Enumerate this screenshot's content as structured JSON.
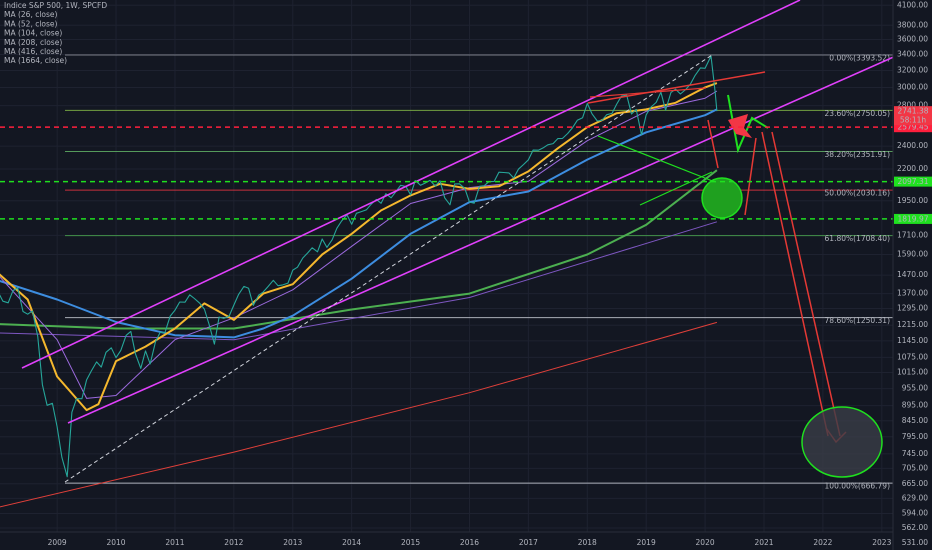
{
  "chart_data": {
    "type": "line",
    "log_scale": true,
    "grid": true,
    "background": "#131722",
    "grid_color": "#1e2230",
    "xlim": [
      2008.03,
      2023.19
    ],
    "xticks": [
      2009,
      2010,
      2011,
      2012,
      2013,
      2014,
      2015,
      2016,
      2017,
      2018,
      2019,
      2020,
      2021,
      2022,
      2023
    ],
    "ylim": [
      517,
      4183
    ],
    "yticks": [
      {
        "value": 4100,
        "label": "4100.00"
      },
      {
        "value": 3800,
        "label": "3800.00"
      },
      {
        "value": 3600,
        "label": "3600.00"
      },
      {
        "value": 3400,
        "label": "3400.00"
      },
      {
        "value": 3200,
        "label": "3200.00"
      },
      {
        "value": 3000,
        "label": "3000.00"
      },
      {
        "value": 2800,
        "label": "2800.00"
      },
      {
        "value": 2400,
        "label": "2400.00"
      },
      {
        "value": 2200,
        "label": "2200.00"
      },
      {
        "value": 1950,
        "label": "1950.00"
      },
      {
        "value": 1710,
        "label": "1710.00"
      },
      {
        "value": 1590,
        "label": "1590.00"
      },
      {
        "value": 1470,
        "label": "1470.00"
      },
      {
        "value": 1370,
        "label": "1370.00"
      },
      {
        "value": 1295,
        "label": "1295.00"
      },
      {
        "value": 1215,
        "label": "1215.00"
      },
      {
        "value": 1145,
        "label": "1145.00"
      },
      {
        "value": 1075,
        "label": "1075.00"
      },
      {
        "value": 1015,
        "label": "1015.00"
      },
      {
        "value": 955,
        "label": "955.00"
      },
      {
        "value": 895,
        "label": "895.00"
      },
      {
        "value": 845,
        "label": "845.00"
      },
      {
        "value": 795,
        "label": "795.00"
      },
      {
        "value": 745,
        "label": "745.00"
      },
      {
        "value": 705,
        "label": "705.00"
      },
      {
        "value": 665,
        "label": "665.00"
      },
      {
        "value": 629,
        "label": "629.00"
      },
      {
        "value": 594,
        "label": "594.00"
      },
      {
        "value": 562,
        "label": "562.00"
      },
      {
        "value": 531,
        "label": "531.00"
      }
    ],
    "series": [
      {
        "name": "Indice S&P 500, 1W, SPCFD",
        "color": "#26a69a",
        "width": 1.1,
        "x": [
          2008.0,
          2008.08,
          2008.17,
          2008.25,
          2008.33,
          2008.42,
          2008.5,
          2008.58,
          2008.67,
          2008.75,
          2008.83,
          2008.92,
          2009.0,
          2009.08,
          2009.17,
          2009.25,
          2009.33,
          2009.42,
          2009.5,
          2009.58,
          2009.67,
          2009.75,
          2009.83,
          2009.92,
          2010.0,
          2010.08,
          2010.17,
          2010.25,
          2010.33,
          2010.42,
          2010.5,
          2010.58,
          2010.67,
          2010.75,
          2010.83,
          2010.92,
          2011.0,
          2011.08,
          2011.17,
          2011.25,
          2011.33,
          2011.42,
          2011.5,
          2011.58,
          2011.67,
          2011.75,
          2011.83,
          2011.92,
          2012.0,
          2012.08,
          2012.17,
          2012.25,
          2012.33,
          2012.42,
          2012.5,
          2012.58,
          2012.67,
          2012.75,
          2012.83,
          2012.92,
          2013.0,
          2013.08,
          2013.17,
          2013.25,
          2013.33,
          2013.42,
          2013.5,
          2013.58,
          2013.67,
          2013.75,
          2013.83,
          2013.92,
          2014.0,
          2014.08,
          2014.17,
          2014.25,
          2014.33,
          2014.42,
          2014.5,
          2014.58,
          2014.67,
          2014.75,
          2014.83,
          2014.92,
          2015.0,
          2015.08,
          2015.17,
          2015.25,
          2015.33,
          2015.42,
          2015.5,
          2015.58,
          2015.67,
          2015.75,
          2015.83,
          2015.92,
          2016.0,
          2016.08,
          2016.17,
          2016.25,
          2016.33,
          2016.42,
          2016.5,
          2016.58,
          2016.67,
          2016.75,
          2016.83,
          2016.92,
          2017.0,
          2017.08,
          2017.17,
          2017.25,
          2017.33,
          2017.42,
          2017.5,
          2017.58,
          2017.67,
          2017.75,
          2017.83,
          2017.92,
          2018.0,
          2018.08,
          2018.17,
          2018.25,
          2018.33,
          2018.42,
          2018.5,
          2018.58,
          2018.67,
          2018.75,
          2018.83,
          2018.92,
          2019.0,
          2019.08,
          2019.17,
          2019.25,
          2019.33,
          2019.42,
          2019.5,
          2019.58,
          2019.67,
          2019.75,
          2019.83,
          2019.92,
          2020.0,
          2020.1,
          2020.17,
          2020.2
        ],
        "values": [
          1378,
          1331,
          1323,
          1386,
          1400,
          1280,
          1267,
          1283,
          1166,
          969,
          896,
          903,
          826,
          735,
          683,
          873,
          919,
          919,
          987,
          1021,
          1057,
          1036,
          1096,
          1115,
          1074,
          1104,
          1169,
          1187,
          1089,
          1031,
          1102,
          1049,
          1141,
          1183,
          1181,
          1258,
          1286,
          1327,
          1326,
          1364,
          1345,
          1321,
          1292,
          1219,
          1131,
          1253,
          1247,
          1258,
          1312,
          1366,
          1408,
          1398,
          1310,
          1362,
          1379,
          1407,
          1441,
          1412,
          1416,
          1426,
          1498,
          1515,
          1569,
          1598,
          1631,
          1606,
          1686,
          1633,
          1682,
          1757,
          1806,
          1848,
          1783,
          1859,
          1872,
          1884,
          1924,
          1960,
          1931,
          2003,
          1972,
          2018,
          2068,
          2059,
          1995,
          2105,
          2068,
          2086,
          2107,
          2063,
          2104,
          1972,
          1920,
          2079,
          2080,
          2044,
          1940,
          1932,
          2060,
          2065,
          2097,
          2099,
          2174,
          2171,
          2168,
          2126,
          2199,
          2239,
          2279,
          2364,
          2363,
          2384,
          2412,
          2423,
          2470,
          2472,
          2519,
          2575,
          2648,
          2674,
          2824,
          2714,
          2641,
          2648,
          2705,
          2718,
          2816,
          2902,
          2914,
          2712,
          2760,
          2507,
          2704,
          2784,
          2834,
          2946,
          2752,
          2942,
          2980,
          2926,
          2977,
          3038,
          3141,
          3231,
          3226,
          3380,
          2954,
          2741
        ]
      },
      {
        "name": "MA (26, close)",
        "color": "#f5b82e",
        "width": 2,
        "x": [
          2008.0,
          2008.5,
          2009.0,
          2009.5,
          2009.7,
          2010.0,
          2010.5,
          2011.0,
          2011.5,
          2012.0,
          2012.5,
          2013.0,
          2013.5,
          2014.0,
          2014.5,
          2015.0,
          2015.5,
          2016.0,
          2016.5,
          2017.0,
          2017.5,
          2018.0,
          2018.5,
          2019.0,
          2019.5,
          2020.0,
          2020.2
        ],
        "values": [
          1480,
          1340,
          1000,
          880,
          900,
          1060,
          1120,
          1200,
          1320,
          1240,
          1370,
          1420,
          1590,
          1720,
          1880,
          1990,
          2080,
          2040,
          2060,
          2180,
          2380,
          2580,
          2720,
          2760,
          2830,
          3000,
          3050
        ]
      },
      {
        "name": "MA (52, close)",
        "color": "#9c6ade",
        "width": 1,
        "x": [
          2008.0,
          2009.0,
          2009.5,
          2010.0,
          2011.0,
          2012.0,
          2013.0,
          2014.0,
          2015.0,
          2016.0,
          2017.0,
          2018.0,
          2019.0,
          2020.0,
          2020.2
        ],
        "values": [
          1470,
          1150,
          920,
          930,
          1150,
          1250,
          1390,
          1640,
          1930,
          2050,
          2100,
          2450,
          2740,
          2880,
          2960
        ]
      },
      {
        "name": "MA (104, close)",
        "color": "#3d8de0",
        "width": 2,
        "x": [
          2008.0,
          2009.0,
          2010.0,
          2011.0,
          2012.0,
          2012.5,
          2013.0,
          2014.0,
          2015.0,
          2016.0,
          2017.0,
          2018.0,
          2019.0,
          2020.0,
          2020.2
        ],
        "values": [
          1440,
          1340,
          1230,
          1170,
          1160,
          1200,
          1260,
          1450,
          1720,
          1940,
          2020,
          2280,
          2530,
          2700,
          2760
        ]
      },
      {
        "name": "MA (208, close)",
        "color": "#4caf50",
        "width": 2,
        "x": [
          2008.0,
          2010.0,
          2012.0,
          2014.0,
          2016.0,
          2018.0,
          2019.0,
          2020.2
        ],
        "values": [
          1220,
          1200,
          1200,
          1290,
          1370,
          1590,
          1780,
          2190
        ]
      },
      {
        "name": "MA (416, close)",
        "color": "#7e57c2",
        "width": 1,
        "x": [
          2008.0,
          2012.0,
          2016.0,
          2020.2
        ],
        "values": [
          1180,
          1150,
          1350,
          1800
        ]
      },
      {
        "name": "MA (1664, close)",
        "color": "#e0403a",
        "width": 1,
        "x": [
          2008.0,
          2012.0,
          2016.0,
          2020.2
        ],
        "values": [
          608,
          750,
          940,
          1228
        ]
      }
    ],
    "fib_levels": [
      {
        "value": 3393.52,
        "label": "0.00%(3393.52)",
        "color": "#9598a1"
      },
      {
        "value": 2750.05,
        "label": "23.60%(2750.05)",
        "color": "#8bc34a"
      },
      {
        "value": 2351.91,
        "label": "38.20%(2351.91)",
        "color": "#66bb6a"
      },
      {
        "value": 2030.16,
        "label": "50.00%(2030.16)",
        "color": "#f23645"
      },
      {
        "value": 1708.4,
        "label": "61.80%(1708.40)",
        "color": "#4caf50"
      },
      {
        "value": 1250.31,
        "label": "78.60%(1250.31)",
        "color": "#d1d4dc"
      },
      {
        "value": 666.79,
        "label": "100.00%(666.79)",
        "color": "#d1d4dc"
      }
    ],
    "levels": [
      {
        "value": 2579.45,
        "color": "#ff1f3d"
      },
      {
        "value": 2097.31,
        "color": "#1fe01f"
      },
      {
        "value": 1819.97,
        "color": "#1fe01f"
      }
    ],
    "last_price": {
      "value": 2741.38,
      "color": "#f23645"
    },
    "countdown": "58:11h"
  }
}
